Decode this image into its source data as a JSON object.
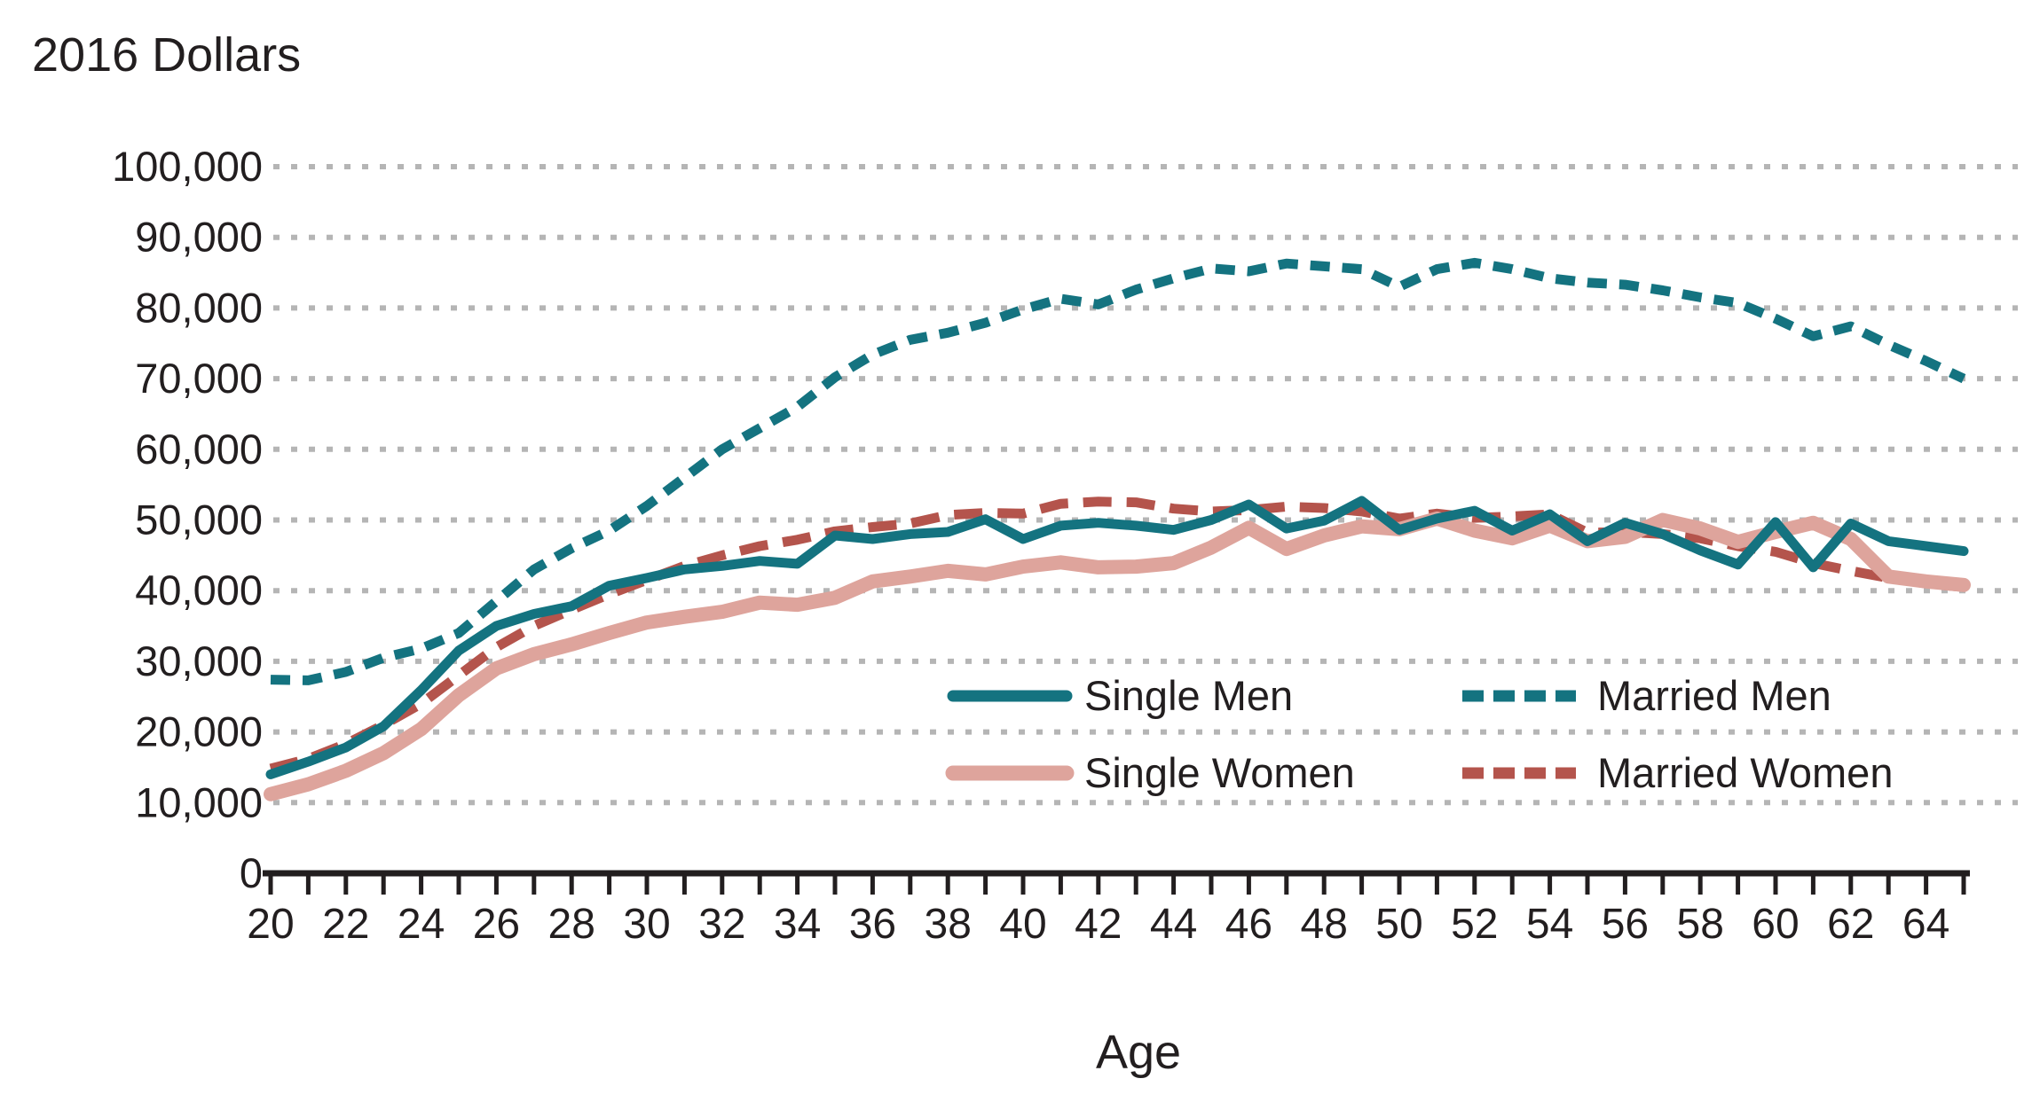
{
  "chart_data": {
    "type": "line",
    "title": "2016 Dollars",
    "xlabel": "Age",
    "ylabel": "",
    "x_start": 20,
    "x_end": 65,
    "x_tick_label_step": 2,
    "ylim": [
      0,
      100000
    ],
    "y_tick_step": 10000,
    "y_tick_labels": [
      "0",
      "10,000",
      "20,000",
      "30,000",
      "40,000",
      "50,000",
      "60,000",
      "70,000",
      "80,000",
      "90,000",
      "100,000"
    ],
    "grid": "dotted-horizontal",
    "grid_color": "#b5b5b5",
    "axis_color": "#221e1f",
    "text_color": "#221e1f",
    "legend_position": "inside-bottom-right",
    "series": [
      {
        "name": "Single Men",
        "color": "#147380",
        "line_style": "solid",
        "width": 11,
        "values": [
          14000,
          15800,
          17800,
          20800,
          25900,
          31500,
          35000,
          36700,
          37800,
          40700,
          41800,
          43000,
          43500,
          44200,
          43800,
          47800,
          47300,
          48000,
          48300,
          50100,
          47300,
          49200,
          49600,
          49200,
          48600,
          50000,
          52200,
          48800,
          49900,
          52700,
          48600,
          50200,
          51300,
          48500,
          50800,
          47000,
          49600,
          48000,
          45700,
          43700,
          49700,
          43300,
          49500,
          47000,
          46300,
          45600
        ]
      },
      {
        "name": "Married Men",
        "color": "#147380",
        "line_style": "dashed",
        "dash": [
          22,
          14
        ],
        "width": 11,
        "values": [
          27400,
          27300,
          28500,
          30500,
          31800,
          34000,
          38500,
          43000,
          46000,
          48500,
          52000,
          56000,
          60000,
          63000,
          66000,
          70200,
          73400,
          75500,
          76500,
          77900,
          79800,
          81300,
          80500,
          82600,
          84200,
          85600,
          85200,
          86300,
          85900,
          85500,
          83000,
          85500,
          86400,
          85500,
          84200,
          83600,
          83300,
          82500,
          81500,
          80700,
          78500,
          76000,
          77400,
          74800,
          72500,
          70000
        ]
      },
      {
        "name": "Single Women",
        "color": "#dea49c",
        "line_style": "solid",
        "width": 16,
        "values": [
          11200,
          12600,
          14500,
          17000,
          20400,
          25200,
          29000,
          31000,
          32400,
          34000,
          35500,
          36300,
          37000,
          38300,
          38000,
          39000,
          41300,
          42000,
          42800,
          42300,
          43400,
          44000,
          43300,
          43400,
          43900,
          46100,
          48900,
          45900,
          47800,
          49100,
          48700,
          50200,
          48500,
          47400,
          49200,
          47000,
          47600,
          50000,
          48800,
          46900,
          48300,
          49600,
          47300,
          42000,
          41300,
          40800
        ]
      },
      {
        "name": "Married Women",
        "color": "#b4544c",
        "line_style": "dashed",
        "dash": [
          32,
          17
        ],
        "width": 11,
        "values": [
          14800,
          16200,
          18300,
          21000,
          24000,
          28000,
          32000,
          35000,
          37300,
          39500,
          41500,
          43500,
          45000,
          46300,
          47200,
          48400,
          49000,
          49500,
          50700,
          51000,
          50900,
          52300,
          52600,
          52500,
          51600,
          51200,
          51400,
          51900,
          51700,
          51200,
          50200,
          50900,
          50300,
          50500,
          50800,
          48200,
          48300,
          48000,
          47400,
          46300,
          45500,
          43900,
          42800,
          41800,
          41000,
          40500
        ]
      }
    ]
  }
}
